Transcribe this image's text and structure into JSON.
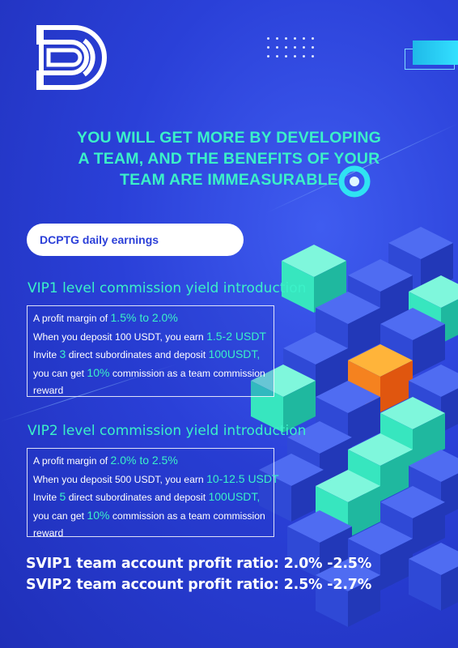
{
  "brand": {
    "logo_icon": "dc-logo-icon"
  },
  "headline": {
    "lines": [
      "YOU WILL GET MORE BY DEVELOPING",
      "A TEAM, AND THE BENEFITS OF YOUR",
      "TEAM ARE IMMEASURABLE"
    ]
  },
  "pill": {
    "label": "DCPTG daily earnings"
  },
  "vip1": {
    "title": "VIP1 level commission yield introduction",
    "margin_prefix": "A profit margin of ",
    "margin_value": "1.5% to 2.0%",
    "deposit_prefix": "When you deposit 100 USDT, you earn ",
    "deposit_value": "1.5-2 USDT",
    "invite_prefix": "Invite ",
    "invite_count": "3",
    "invite_mid": " direct subordinates and deposit ",
    "invite_amount": "100USDT,",
    "commission_prefix": "you can get ",
    "commission_value": "10%",
    "commission_suffix": " commission as a team commission",
    "reward": "reward"
  },
  "vip2": {
    "title": "VIP2 level commission yield introduction",
    "margin_prefix": "A profit margin of ",
    "margin_value": "2.0% to 2.5%",
    "deposit_prefix": "When you deposit 500 USDT, you earn ",
    "deposit_value": "10-12.5 USDT",
    "invite_prefix": "Invite ",
    "invite_count": "5",
    "invite_mid": " direct subordinates and deposit ",
    "invite_amount": "100USDT,",
    "commission_prefix": "you can get ",
    "commission_value": "10%",
    "commission_suffix": " commission as a team commission",
    "reward": "reward"
  },
  "ratios": {
    "svip1": "SVIP1 team account profit ratio: 2.0% -2.5%",
    "svip2": "SVIP2 team account profit ratio: 2.5% -2.7%"
  },
  "colors": {
    "background": "#2a40d8",
    "accent": "#3bf1c8",
    "highlight_cube": "#f5821f",
    "pill_text": "#2b3fd8"
  },
  "decor": {
    "cubes": "isometric-cube-stack",
    "ring": "ring-icon",
    "dots": "dot-grid"
  }
}
